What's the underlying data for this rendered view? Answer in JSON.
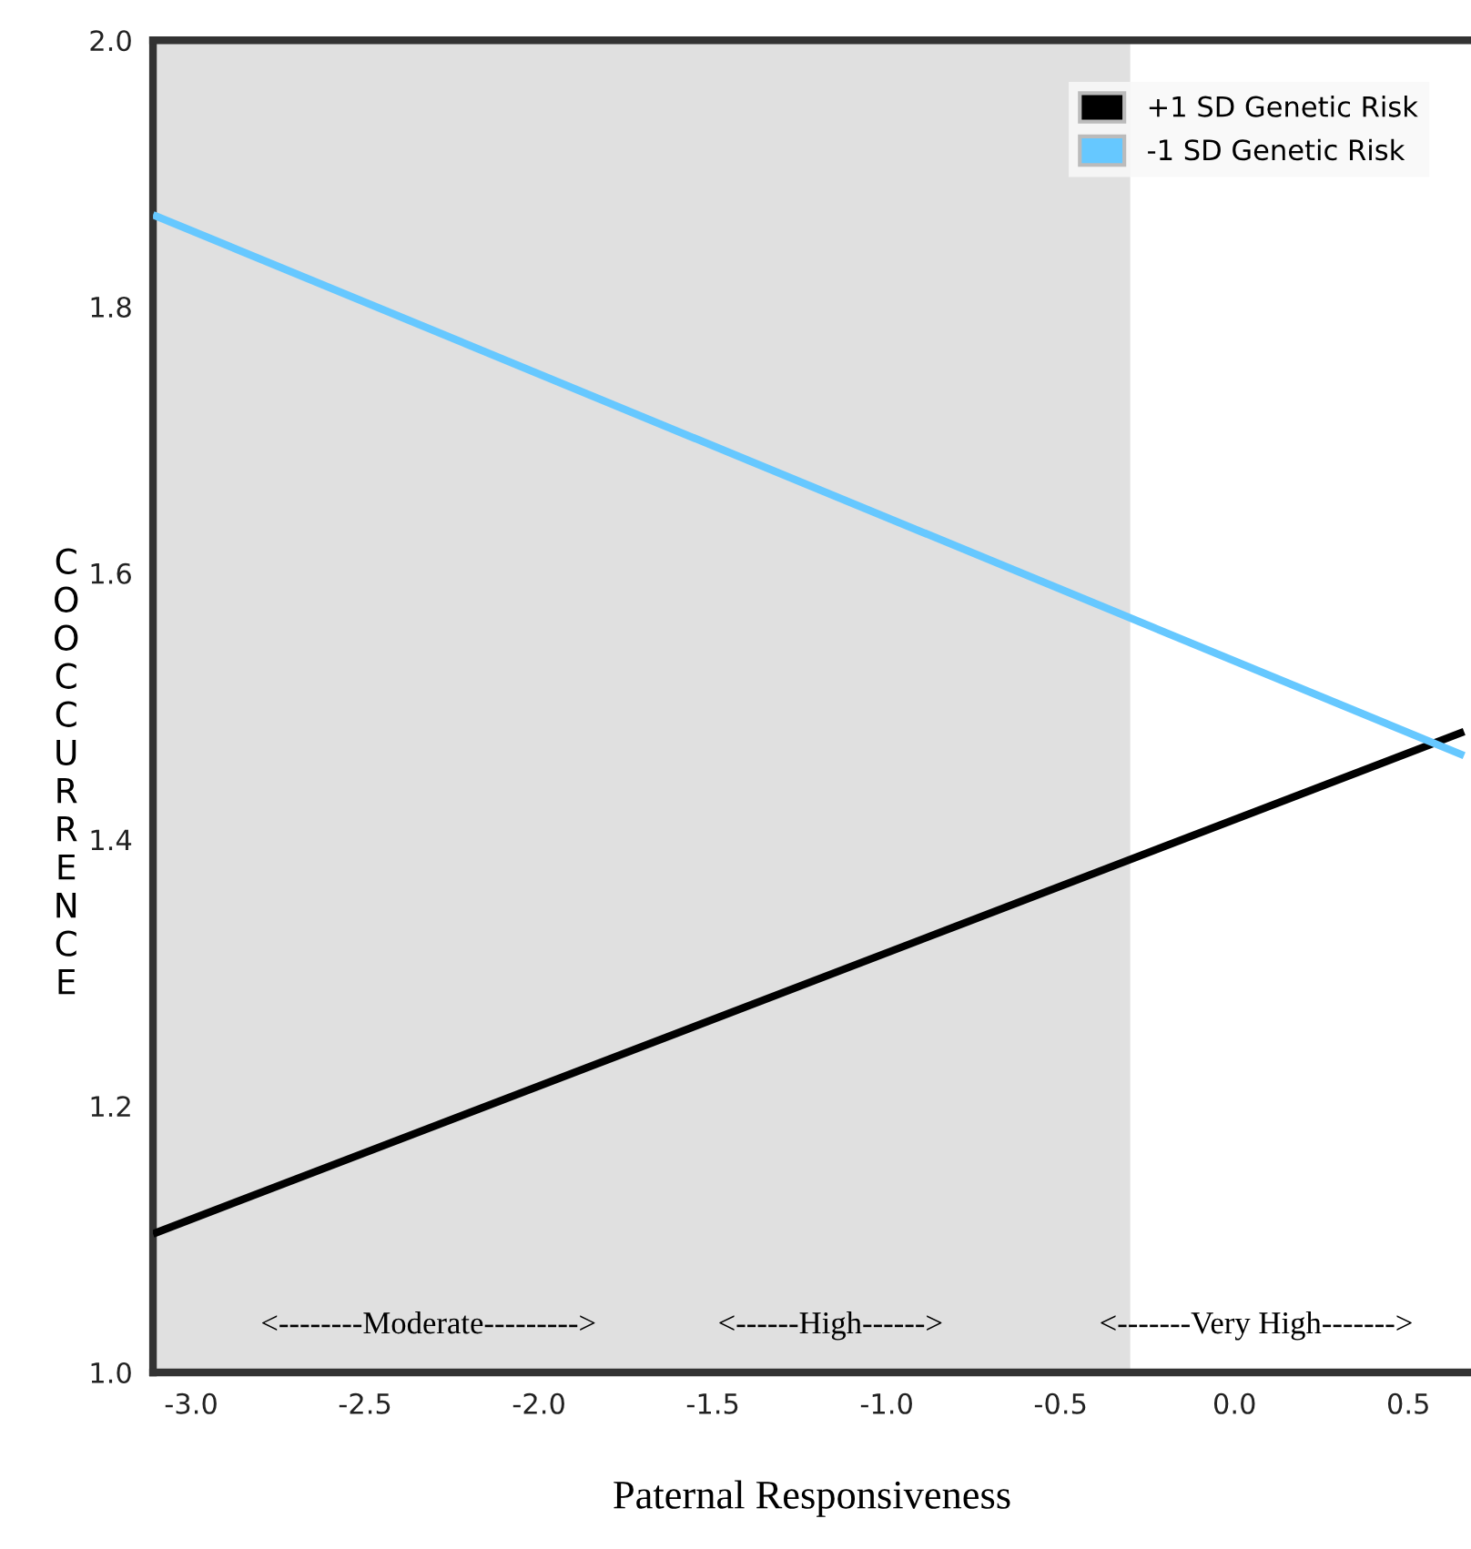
{
  "chart_data": {
    "type": "line",
    "xlabel": "Paternal Responsiveness",
    "ylabel": "COOCCURRENCE",
    "xlim": [
      -3.11,
      0.68
    ],
    "ylim": [
      1.0,
      2.0
    ],
    "xticks": [
      {
        "value": -3.0,
        "label": "-3.0"
      },
      {
        "value": -2.5,
        "label": "-2.5"
      },
      {
        "value": -2.0,
        "label": "-2.0"
      },
      {
        "value": -1.5,
        "label": "-1.5"
      },
      {
        "value": -1.0,
        "label": "-1.0"
      },
      {
        "value": -0.5,
        "label": "-0.5"
      },
      {
        "value": 0.0,
        "label": "0.0"
      },
      {
        "value": 0.5,
        "label": "0.5"
      }
    ],
    "yticks": [
      {
        "value": 1.0,
        "label": "1.0"
      },
      {
        "value": 1.2,
        "label": "1.2"
      },
      {
        "value": 1.4,
        "label": "1.4"
      },
      {
        "value": 1.6,
        "label": "1.6"
      },
      {
        "value": 1.8,
        "label": "1.8"
      },
      {
        "value": 2.0,
        "label": "2.0"
      }
    ],
    "x": [
      -3.11,
      0.66
    ],
    "series": [
      {
        "name": "+1 SD Genetic Risk",
        "color": "#000000",
        "values": [
          1.104,
          1.481
        ]
      },
      {
        "name": "-1 SD Genetic Risk",
        "color": "#66c8ff",
        "values": [
          1.869,
          1.463
        ]
      }
    ],
    "bands": [
      {
        "axis": "x",
        "from": -3.11,
        "to": -0.3,
        "color": "#e0e0e0"
      }
    ],
    "annotations": [
      "<--------Moderate--------->",
      "<------High------>",
      "<-------Very High------->"
    ],
    "legend": "top right",
    "grid": false,
    "marker": "none",
    "line_style": "solid"
  }
}
